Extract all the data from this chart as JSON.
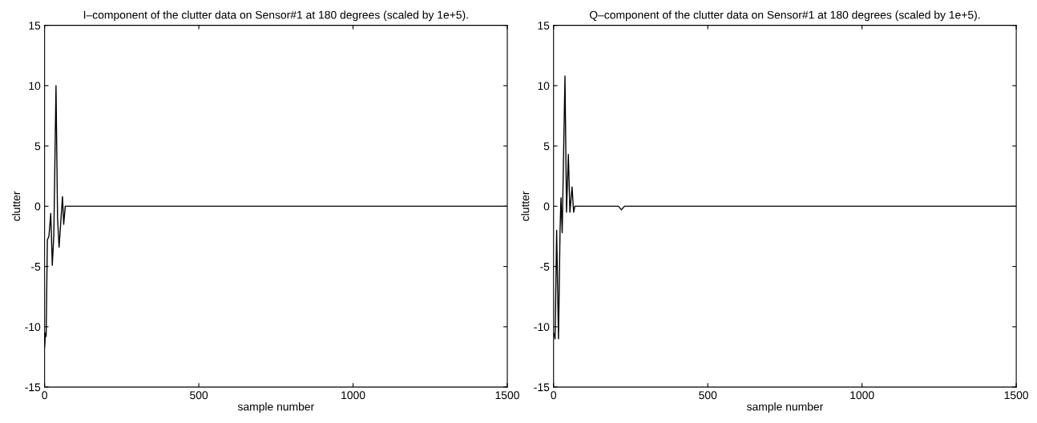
{
  "chart_data": [
    {
      "type": "line",
      "title": "I–component of the clutter data on Sensor#1 at 180 degrees (scaled by 1e+5).",
      "xlabel": "sample number",
      "ylabel": "clutter",
      "x": [
        0,
        3,
        5,
        9,
        14,
        20,
        25,
        30,
        37,
        42,
        47,
        58,
        62,
        67,
        73,
        200,
        1500
      ],
      "series": [
        {
          "color": "#000000",
          "values": [
            -11.7,
            -10.5,
            -10.8,
            -2.8,
            -2.5,
            -0.6,
            -4.9,
            -2.3,
            10,
            -1,
            -3.4,
            0.8,
            -1.5,
            0,
            0,
            0,
            0
          ]
        }
      ],
      "xlim": [
        0,
        1500
      ],
      "ylim": [
        -15,
        15
      ],
      "xticks": [
        0,
        500,
        1000,
        1500
      ],
      "yticks": [
        -15,
        -10,
        -5,
        0,
        5,
        10,
        15
      ],
      "grid": false,
      "legend": false
    },
    {
      "type": "line",
      "title": "Q–component of the clutter data on Sensor#1 at 180 degrees (scaled by 1e+5).",
      "xlabel": "sample number",
      "ylabel": "clutter",
      "x": [
        0,
        5,
        10,
        16,
        21,
        24,
        28,
        37,
        42,
        48,
        53,
        60,
        65,
        69,
        210,
        220,
        230,
        1500
      ],
      "series": [
        {
          "color": "#000000",
          "values": [
            -10.5,
            -11,
            -2,
            -11,
            -2.1,
            0.7,
            -2.2,
            10.8,
            -0.5,
            4.3,
            -0.5,
            1.6,
            -0.5,
            0,
            0,
            -0.3,
            0,
            0
          ]
        }
      ],
      "xlim": [
        0,
        1500
      ],
      "ylim": [
        -15,
        15
      ],
      "xticks": [
        0,
        500,
        1000,
        1500
      ],
      "yticks": [
        -15,
        -10,
        -5,
        0,
        5,
        10,
        15
      ],
      "grid": false,
      "legend": false
    }
  ]
}
